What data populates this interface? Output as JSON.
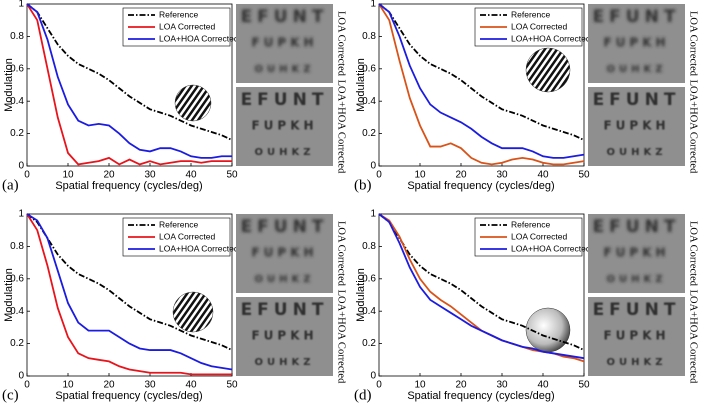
{
  "chart_data": [
    {
      "type": "line",
      "panel_label": "(a)",
      "xlabel": "Spatial frequency (cycles/deg)",
      "ylabel": "Modulation",
      "x": [
        0,
        2.5,
        5,
        7.5,
        10,
        12.5,
        15,
        17.5,
        20,
        22.5,
        25,
        27.5,
        30,
        32.5,
        35,
        37.5,
        40,
        42.5,
        45,
        47.5,
        50
      ],
      "xlim": [
        0,
        50
      ],
      "xticks": [
        0,
        10,
        20,
        30,
        40,
        50
      ],
      "ylim": [
        0,
        1
      ],
      "yticks": [
        0,
        0.2,
        0.4,
        0.6,
        0.8,
        1
      ],
      "legend": "upper right",
      "series": [
        {
          "name": "Reference",
          "color": "#000000",
          "dash": "dashdot",
          "values": [
            1,
            0.95,
            0.85,
            0.75,
            0.68,
            0.63,
            0.6,
            0.57,
            0.53,
            0.48,
            0.43,
            0.39,
            0.35,
            0.33,
            0.31,
            0.28,
            0.25,
            0.23,
            0.21,
            0.19,
            0.16
          ]
        },
        {
          "name": "LOA Corrected",
          "color": "#e8141c",
          "values": [
            1,
            0.9,
            0.6,
            0.3,
            0.08,
            0.01,
            0.02,
            0.03,
            0.05,
            0.01,
            0.04,
            0.01,
            0.03,
            0.01,
            0.02,
            0.03,
            0.03,
            0.02,
            0.03,
            0.03,
            0.03
          ]
        },
        {
          "name": "LOA+HOA Corrected",
          "color": "#1c1ce0",
          "values": [
            1,
            0.95,
            0.78,
            0.55,
            0.38,
            0.28,
            0.25,
            0.26,
            0.25,
            0.2,
            0.14,
            0.1,
            0.09,
            0.11,
            0.11,
            0.09,
            0.06,
            0.05,
            0.05,
            0.06,
            0.06
          ]
        }
      ],
      "images": [
        {
          "label": "LOA Corrected",
          "rows": [
            "EFUNT",
            "FUPKH",
            "OUHKZ"
          ]
        },
        {
          "label": "LOA+HOA Corrected",
          "rows": [
            "EFUNT",
            "FUPKH",
            "OUHKZ"
          ]
        }
      ]
    },
    {
      "type": "line",
      "panel_label": "(b)",
      "xlabel": "Spatial frequency (cycles/deg)",
      "ylabel": "Modulation",
      "x": [
        0,
        2.5,
        5,
        7.5,
        10,
        12.5,
        15,
        17.5,
        20,
        22.5,
        25,
        27.5,
        30,
        32.5,
        35,
        37.5,
        40,
        42.5,
        45,
        47.5,
        50
      ],
      "xlim": [
        0,
        50
      ],
      "xticks": [
        0,
        10,
        20,
        30,
        40,
        50
      ],
      "ylim": [
        0,
        1
      ],
      "yticks": [
        0,
        0.2,
        0.4,
        0.6,
        0.8,
        1
      ],
      "legend": "upper right",
      "series": [
        {
          "name": "Reference",
          "color": "#000000",
          "dash": "dashdot",
          "values": [
            1,
            0.95,
            0.85,
            0.75,
            0.68,
            0.63,
            0.6,
            0.57,
            0.53,
            0.48,
            0.43,
            0.39,
            0.35,
            0.33,
            0.31,
            0.28,
            0.25,
            0.23,
            0.21,
            0.19,
            0.16
          ]
        },
        {
          "name": "LOA Corrected",
          "color": "#d95319",
          "values": [
            1,
            0.9,
            0.65,
            0.42,
            0.25,
            0.12,
            0.12,
            0.14,
            0.11,
            0.05,
            0.02,
            0.01,
            0.02,
            0.04,
            0.05,
            0.04,
            0.02,
            0.01,
            0.01,
            0.02,
            0.03
          ]
        },
        {
          "name": "LOA+HOA Corrected",
          "color": "#1c1ce0",
          "values": [
            1,
            0.95,
            0.8,
            0.62,
            0.48,
            0.38,
            0.33,
            0.3,
            0.27,
            0.23,
            0.18,
            0.14,
            0.11,
            0.11,
            0.11,
            0.09,
            0.06,
            0.05,
            0.05,
            0.06,
            0.07
          ]
        }
      ],
      "images": [
        {
          "label": "LOA Corrected",
          "rows": [
            "EFUNT",
            "FUPKH",
            "OUHKZ"
          ]
        },
        {
          "label": "LOA+HOA Corrected",
          "rows": [
            "EFUNT",
            "FUPKH",
            "OUHKZ"
          ]
        }
      ]
    },
    {
      "type": "line",
      "panel_label": "(c)",
      "xlabel": "Spatial frequency (cycles/deg)",
      "ylabel": "Modulation",
      "x": [
        0,
        2.5,
        5,
        7.5,
        10,
        12.5,
        15,
        17.5,
        20,
        22.5,
        25,
        27.5,
        30,
        32.5,
        35,
        37.5,
        40,
        42.5,
        45,
        47.5,
        50
      ],
      "xlim": [
        0,
        50
      ],
      "xticks": [
        0,
        10,
        20,
        30,
        40,
        50
      ],
      "ylim": [
        0,
        1
      ],
      "yticks": [
        0,
        0.2,
        0.4,
        0.6,
        0.8,
        1
      ],
      "legend": "upper right",
      "series": [
        {
          "name": "Reference",
          "color": "#000000",
          "dash": "dashdot",
          "values": [
            1,
            0.95,
            0.85,
            0.75,
            0.68,
            0.63,
            0.6,
            0.57,
            0.53,
            0.48,
            0.43,
            0.39,
            0.35,
            0.33,
            0.31,
            0.28,
            0.25,
            0.23,
            0.21,
            0.19,
            0.16
          ]
        },
        {
          "name": "LOA Corrected",
          "color": "#e8141c",
          "values": [
            1,
            0.9,
            0.68,
            0.42,
            0.24,
            0.14,
            0.11,
            0.1,
            0.09,
            0.06,
            0.04,
            0.03,
            0.02,
            0.02,
            0.02,
            0.02,
            0.01,
            0.01,
            0.01,
            0.01,
            0.01
          ]
        },
        {
          "name": "LOA+HOA Corrected",
          "color": "#1c1ce0",
          "values": [
            1,
            0.96,
            0.85,
            0.65,
            0.45,
            0.33,
            0.28,
            0.28,
            0.28,
            0.24,
            0.2,
            0.17,
            0.16,
            0.16,
            0.16,
            0.14,
            0.11,
            0.08,
            0.06,
            0.05,
            0.04
          ]
        }
      ],
      "images": [
        {
          "label": "LOA Corrected",
          "rows": [
            "EFUNT",
            "FUPKH",
            "OUHKZ"
          ]
        },
        {
          "label": "LOA+HOA Corrected",
          "rows": [
            "EFUNT",
            "FUPKH",
            "OUHKZ"
          ]
        }
      ]
    },
    {
      "type": "line",
      "panel_label": "(d)",
      "xlabel": "Spatial frequency (cycles/deg)",
      "ylabel": "Modulation",
      "x": [
        0,
        2.5,
        5,
        7.5,
        10,
        12.5,
        15,
        17.5,
        20,
        22.5,
        25,
        27.5,
        30,
        32.5,
        35,
        37.5,
        40,
        42.5,
        45,
        47.5,
        50
      ],
      "xlim": [
        0,
        50
      ],
      "xticks": [
        0,
        10,
        20,
        30,
        40,
        50
      ],
      "ylim": [
        0,
        1
      ],
      "yticks": [
        0,
        0.2,
        0.4,
        0.6,
        0.8,
        1
      ],
      "legend": "upper right",
      "series": [
        {
          "name": "Reference",
          "color": "#000000",
          "dash": "dashdot",
          "values": [
            1,
            0.95,
            0.85,
            0.75,
            0.68,
            0.63,
            0.6,
            0.57,
            0.53,
            0.48,
            0.43,
            0.39,
            0.35,
            0.33,
            0.31,
            0.28,
            0.25,
            0.23,
            0.21,
            0.19,
            0.16
          ]
        },
        {
          "name": "LOA Corrected",
          "color": "#d95319",
          "values": [
            1,
            0.96,
            0.86,
            0.72,
            0.6,
            0.52,
            0.47,
            0.43,
            0.38,
            0.33,
            0.28,
            0.25,
            0.22,
            0.2,
            0.18,
            0.16,
            0.15,
            0.14,
            0.12,
            0.11,
            0.09
          ]
        },
        {
          "name": "LOA+HOA Corrected",
          "color": "#1c1ce0",
          "values": [
            1,
            0.95,
            0.82,
            0.67,
            0.55,
            0.47,
            0.43,
            0.39,
            0.35,
            0.31,
            0.28,
            0.25,
            0.22,
            0.2,
            0.18,
            0.17,
            0.15,
            0.14,
            0.13,
            0.12,
            0.11
          ]
        }
      ],
      "images": [
        {
          "label": "LOA Corrected",
          "rows": [
            "EFUNT",
            "FUPKH",
            "OUHKZ"
          ]
        },
        {
          "label": "LOA+HOA Corrected",
          "rows": [
            "EFUNT",
            "FUPKH",
            "OUHKZ"
          ]
        }
      ]
    }
  ]
}
